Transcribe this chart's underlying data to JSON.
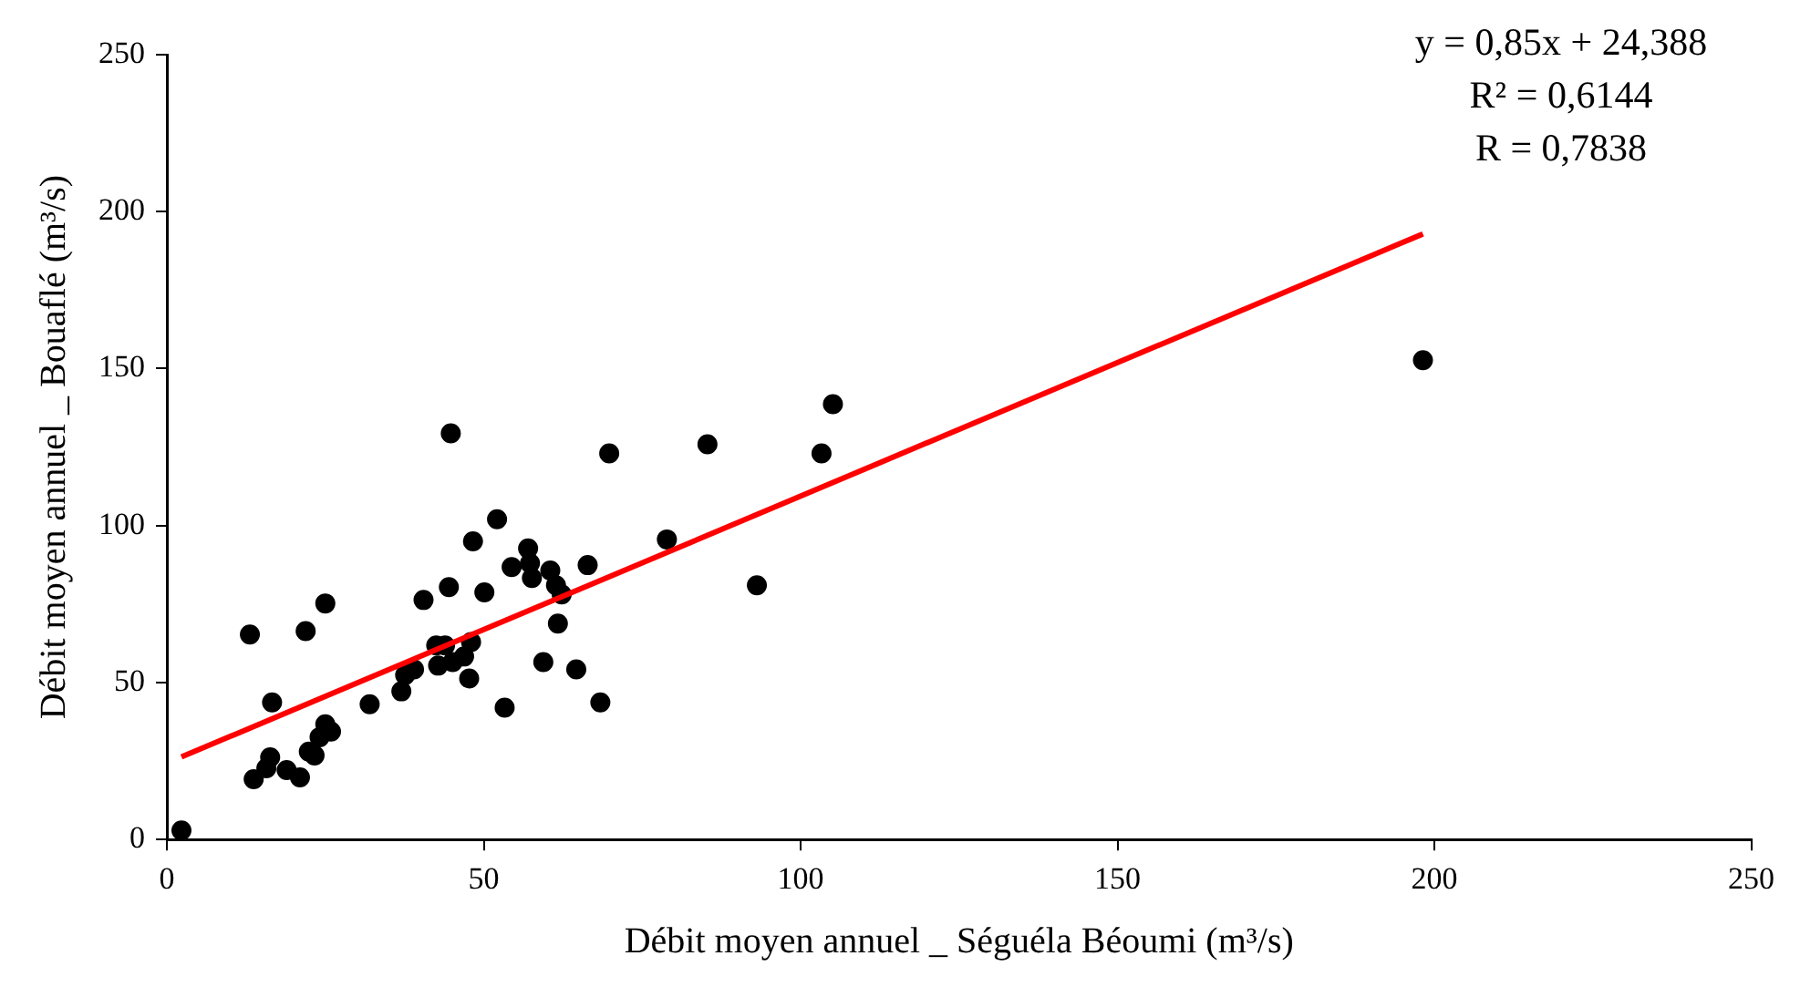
{
  "chart_data": {
    "type": "scatter",
    "xlabel": "Débit moyen annuel _ Séguéla Béoumi (m³/s)",
    "ylabel": "Débit moyen annuel _ Bouaflé (m³/s)",
    "annotations": [
      "y = 0,85x + 24,388",
      "R² = 0,6144",
      "R = 0,7838"
    ],
    "xlim": [
      0,
      250
    ],
    "xticks": [
      0,
      50,
      100,
      150,
      200,
      250
    ],
    "ylim": [
      0,
      250
    ],
    "yticks": [
      0,
      50,
      100,
      150,
      200,
      250
    ],
    "grid": false,
    "legend": false,
    "series": [
      {
        "color": "#000000",
        "marker": "circle",
        "x": [
          2.3,
          13.1,
          13.7,
          15.7,
          16.6,
          16.3,
          18.9,
          21.0,
          21.9,
          22.4,
          23.3,
          24.1,
          25.0,
          25.0,
          25.9,
          32.0,
          37.0,
          37.6,
          39.0,
          40.5,
          42.5,
          42.8,
          43.9,
          44.5,
          44.8,
          45.1,
          46.9,
          47.7,
          48.0,
          48.3,
          50.1,
          52.1,
          53.3,
          54.4,
          57.0,
          57.3,
          57.6,
          59.4,
          60.5,
          61.4,
          61.7,
          62.3,
          64.6,
          66.4,
          68.4,
          69.8,
          78.9,
          85.3,
          93.1,
          103.3,
          105.1,
          198.2
        ],
        "values": [
          2.9,
          65.3,
          19.2,
          22.7,
          43.7,
          26.2,
          22.1,
          19.8,
          66.4,
          28.0,
          26.8,
          32.6,
          75.2,
          36.7,
          34.4,
          43.1,
          47.2,
          52.4,
          54.2,
          76.3,
          61.8,
          55.4,
          61.8,
          80.4,
          129.4,
          56.5,
          58.3,
          51.3,
          62.9,
          95.0,
          78.7,
          102.0,
          42.0,
          86.8,
          92.7,
          88.0,
          83.3,
          56.5,
          85.7,
          81.0,
          68.8,
          78.1,
          54.2,
          87.4,
          43.7,
          123.0,
          95.6,
          125.9,
          81.0,
          123.0,
          138.7,
          152.7
        ]
      },
      {
        "type": "line",
        "color": "#ff0000",
        "line_style": "solid",
        "marker": "none",
        "x": [
          2.3,
          198.2
        ],
        "values": [
          26.3,
          192.9
        ]
      }
    ]
  }
}
